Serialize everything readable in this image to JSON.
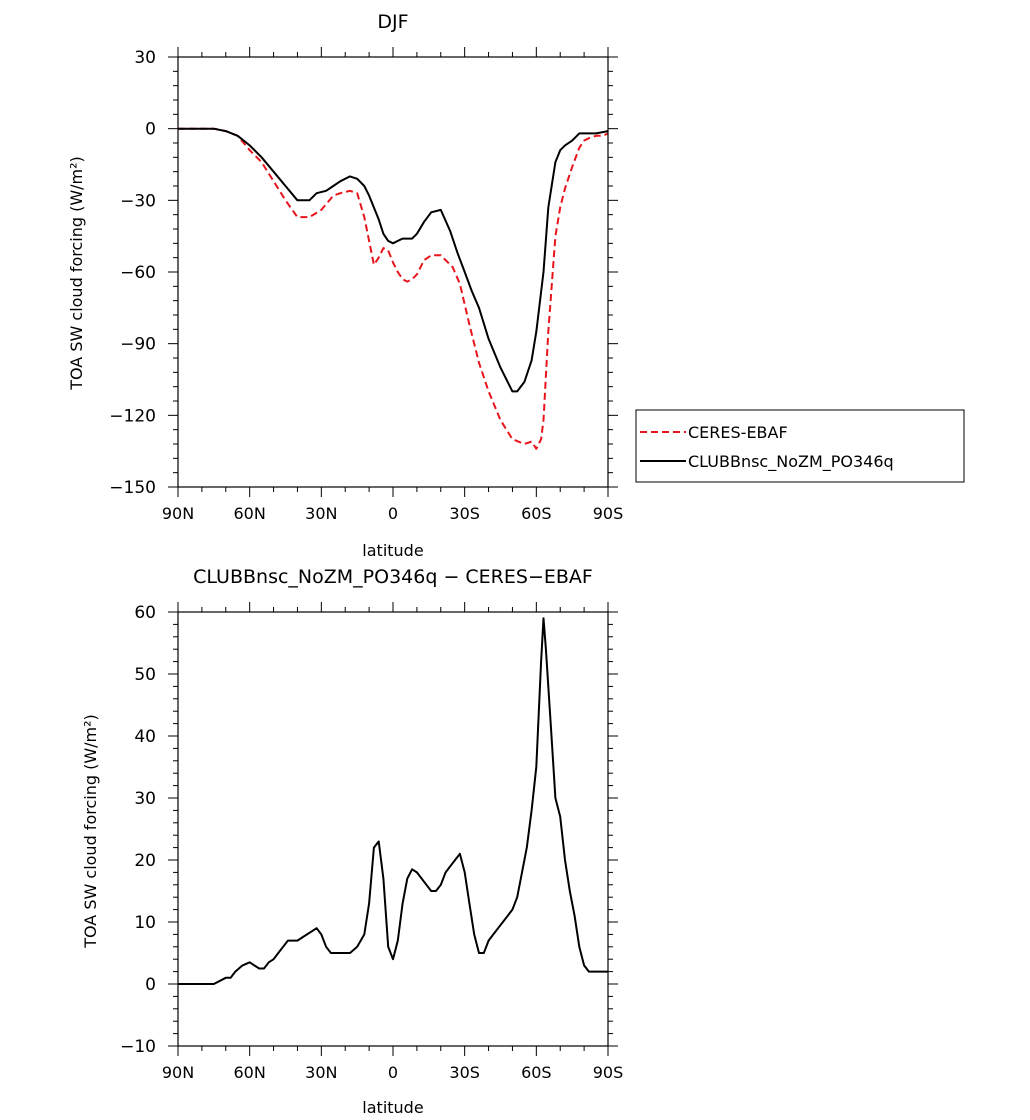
{
  "chart_data": [
    {
      "type": "line",
      "title": "DJF",
      "xlabel": "latitude",
      "ylabel": "TOA SW cloud forcing (W/m²)",
      "xlim": [
        -90,
        90
      ],
      "ylim": [
        -150,
        30
      ],
      "xticks": [
        -90,
        -60,
        -30,
        0,
        30,
        60,
        90
      ],
      "xtick_labels": [
        "90N",
        "60N",
        "30N",
        "0",
        "30S",
        "60S",
        "90S"
      ],
      "yticks": [
        30,
        0,
        -30,
        -60,
        -90,
        -120,
        -150
      ],
      "ytick_labels": [
        "30",
        "0",
        "−30",
        "−60",
        "−90",
        "−120",
        "−150"
      ],
      "legend": [
        "CERES-EBAF",
        "CLUBBnsc_NoZM_PO346q"
      ],
      "series": [
        {
          "name": "CERES-EBAF",
          "color": "#e8141b",
          "dash": "dashed",
          "x": [
            -90,
            -85,
            -80,
            -75,
            -70,
            -65,
            -60,
            -55,
            -50,
            -45,
            -40,
            -35,
            -30,
            -25,
            -22,
            -18,
            -15,
            -12,
            -10,
            -8,
            -6,
            -4,
            -2,
            0,
            2,
            4,
            6,
            8,
            10,
            13,
            16,
            20,
            25,
            28,
            32,
            36,
            40,
            45,
            50,
            55,
            58,
            60,
            62,
            63,
            65,
            68,
            70,
            72,
            75,
            78,
            80,
            82,
            85,
            88,
            90
          ],
          "y": [
            0,
            0,
            0,
            0,
            -1,
            -3,
            -9,
            -14,
            -22,
            -30,
            -37,
            -37,
            -34,
            -28,
            -27,
            -26,
            -27,
            -37,
            -47,
            -57,
            -54,
            -50,
            -51,
            -56,
            -60,
            -63,
            -64,
            -63,
            -61,
            -55,
            -53,
            -53,
            -58,
            -65,
            -82,
            -98,
            -110,
            -122,
            -130,
            -132,
            -131,
            -134,
            -130,
            -122,
            -85,
            -45,
            -33,
            -25,
            -16,
            -8,
            -5,
            -4,
            -3,
            -3,
            -2
          ]
        },
        {
          "name": "CLUBBnsc_NoZM_PO346q",
          "color": "#000000",
          "dash": "solid",
          "x": [
            -90,
            -85,
            -80,
            -75,
            -70,
            -65,
            -60,
            -55,
            -50,
            -45,
            -40,
            -35,
            -32,
            -28,
            -25,
            -22,
            -18,
            -15,
            -12,
            -10,
            -8,
            -6,
            -4,
            -2,
            0,
            2,
            4,
            6,
            8,
            10,
            13,
            16,
            20,
            24,
            27,
            30,
            33,
            36,
            40,
            45,
            50,
            52,
            55,
            58,
            60,
            63,
            65,
            68,
            70,
            72,
            75,
            78,
            80,
            85,
            90
          ],
          "y": [
            0,
            0,
            0,
            0,
            -1,
            -3,
            -7,
            -12,
            -18,
            -24,
            -30,
            -30,
            -27,
            -26,
            -24,
            -22,
            -20,
            -21,
            -24,
            -28,
            -33,
            -38,
            -44,
            -47,
            -48,
            -47,
            -46,
            -46,
            -46,
            -44,
            -39,
            -35,
            -34,
            -43,
            -52,
            -60,
            -68,
            -75,
            -88,
            -100,
            -110,
            -110,
            -106,
            -97,
            -85,
            -60,
            -33,
            -14,
            -9,
            -7,
            -5,
            -2,
            -2,
            -2,
            -1
          ]
        }
      ]
    },
    {
      "type": "line",
      "title": "CLUBBnsc_NoZM_PO346q − CERES−EBAF",
      "xlabel": "latitude",
      "ylabel": "TOA SW cloud forcing (W/m²)",
      "xlim": [
        -90,
        90
      ],
      "ylim": [
        -10,
        60
      ],
      "xticks": [
        -90,
        -60,
        -30,
        0,
        30,
        60,
        90
      ],
      "xtick_labels": [
        "90N",
        "60N",
        "30N",
        "0",
        "30S",
        "60S",
        "90S"
      ],
      "yticks": [
        60,
        50,
        40,
        30,
        20,
        10,
        0,
        -10
      ],
      "ytick_labels": [
        "60",
        "50",
        "40",
        "30",
        "20",
        "10",
        "0",
        "−10"
      ],
      "series": [
        {
          "color": "#000000",
          "dash": "solid",
          "x": [
            -90,
            -85,
            -83,
            -80,
            -75,
            -70,
            -68,
            -66,
            -63,
            -60,
            -58,
            -56,
            -54,
            -52,
            -50,
            -48,
            -46,
            -44,
            -42,
            -40,
            -38,
            -36,
            -34,
            -32,
            -30,
            -28,
            -26,
            -24,
            -22,
            -20,
            -18,
            -15,
            -12,
            -10,
            -8,
            -6,
            -4,
            -2,
            0,
            2,
            4,
            6,
            8,
            10,
            12,
            14,
            16,
            18,
            20,
            22,
            24,
            26,
            28,
            30,
            32,
            34,
            36,
            38,
            40,
            42,
            44,
            46,
            48,
            50,
            52,
            54,
            56,
            58,
            60,
            62,
            63,
            64,
            66,
            68,
            70,
            72,
            74,
            76,
            78,
            80,
            82,
            84,
            86,
            88,
            90
          ],
          "y": [
            0,
            0,
            0,
            0,
            0,
            1,
            1,
            2,
            3,
            3.5,
            3,
            2.5,
            2.5,
            3.5,
            4,
            5,
            6,
            7,
            7,
            7,
            7.5,
            8,
            8.5,
            9,
            8,
            6,
            5,
            5,
            5,
            5,
            5,
            6,
            8,
            13,
            22,
            23,
            17,
            6,
            4,
            7,
            13,
            17,
            18.5,
            18,
            17,
            16,
            15,
            15,
            16,
            18,
            19,
            20,
            21,
            18,
            13,
            8,
            5,
            5,
            7,
            8,
            9,
            10,
            11,
            12,
            14,
            18,
            22,
            28,
            35,
            52,
            59,
            54,
            42,
            30,
            27,
            20,
            15,
            11,
            6,
            3,
            2,
            2,
            2,
            2,
            2
          ]
        }
      ]
    }
  ]
}
